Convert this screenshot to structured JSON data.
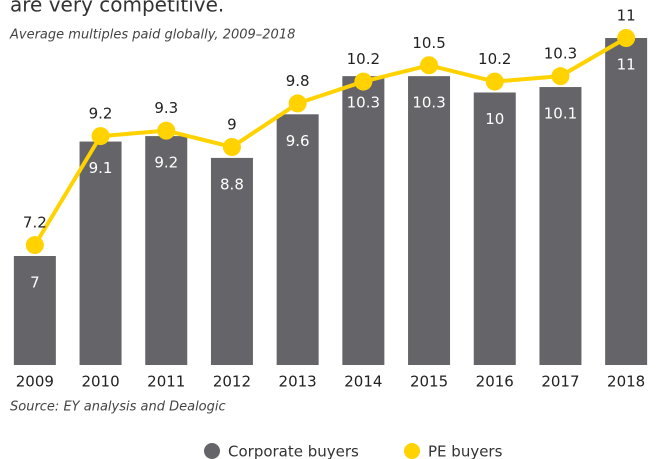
{
  "chart_data": {
    "type": "bar-line",
    "title": "are very competitive.",
    "subtitle": "Average multiples paid globally, 2009–2018",
    "source": "Source: EY analysis and Dealogic",
    "categories": [
      "2009",
      "2010",
      "2011",
      "2012",
      "2013",
      "2014",
      "2015",
      "2016",
      "2017",
      "2018"
    ],
    "series": [
      {
        "name": "Corporate buyers",
        "color": "#646469",
        "values": [
          7.0,
          9.1,
          9.2,
          8.8,
          9.6,
          10.3,
          10.3,
          10.0,
          10.1,
          11.0
        ]
      },
      {
        "name": "PE buyers",
        "color": "#ffd200",
        "values": [
          7.2,
          9.2,
          9.3,
          9.0,
          9.8,
          10.2,
          10.5,
          10.2,
          10.3,
          11.0
        ]
      }
    ],
    "ylim": [
      5,
      11.5
    ]
  }
}
